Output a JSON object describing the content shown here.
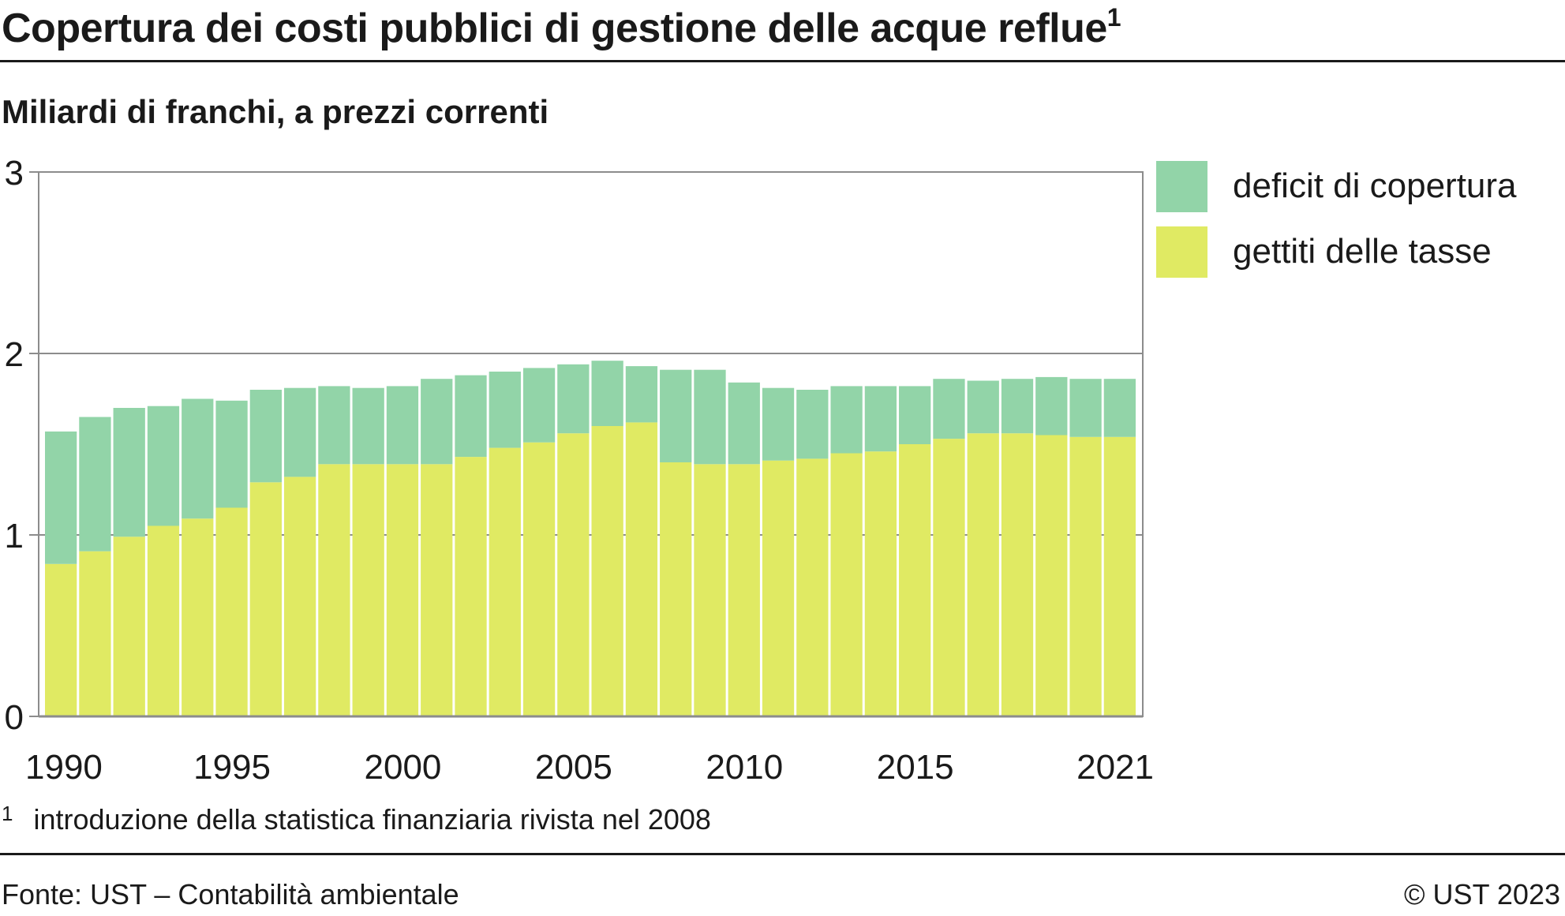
{
  "header": {
    "title": "Copertura dei costi pubblici di gestione delle acque reflue",
    "title_note_mark": "1",
    "subtitle": "Miliardi di franchi, a prezzi correnti"
  },
  "footer": {
    "footnote_mark": "1",
    "footnote_text": "introduzione della statistica finanziaria rivista nel 2008",
    "source": "Fonte: UST – Contabilità ambientale",
    "copyright": "© UST 2023"
  },
  "colors": {
    "deficit": "#92d4a8",
    "tasse": "#e0ea63",
    "gridline": "#8c8c8c",
    "text": "#1a1a1a"
  },
  "chart_data": {
    "type": "bar",
    "stacked": true,
    "title": "Copertura dei costi pubblici di gestione delle acque reflue",
    "subtitle": "Miliardi di franchi, a prezzi correnti",
    "xlabel": "",
    "ylabel": "",
    "ylim": [
      0,
      3
    ],
    "yticks": [
      "0",
      "1",
      "2",
      "3"
    ],
    "grid": true,
    "legend_position": "right",
    "categories": [
      1990,
      1991,
      1992,
      1993,
      1994,
      1995,
      1996,
      1997,
      1998,
      1999,
      2000,
      2001,
      2002,
      2003,
      2004,
      2005,
      2006,
      2007,
      2008,
      2009,
      2010,
      2011,
      2012,
      2013,
      2014,
      2015,
      2016,
      2017,
      2018,
      2019,
      2020,
      2021
    ],
    "xtick_labels": [
      "1990",
      "1995",
      "2000",
      "2005",
      "2010",
      "2015",
      "2021"
    ],
    "series": [
      {
        "name": "gettiti delle tasse",
        "color": "#e0ea63",
        "values": [
          0.84,
          0.91,
          0.99,
          1.05,
          1.09,
          1.15,
          1.29,
          1.32,
          1.39,
          1.39,
          1.39,
          1.39,
          1.43,
          1.48,
          1.51,
          1.56,
          1.6,
          1.62,
          1.4,
          1.39,
          1.39,
          1.41,
          1.42,
          1.45,
          1.46,
          1.5,
          1.53,
          1.56,
          1.56,
          1.55,
          1.54,
          1.54
        ]
      },
      {
        "name": "deficit di copertura",
        "color": "#92d4a8",
        "values": [
          0.73,
          0.74,
          0.71,
          0.66,
          0.66,
          0.59,
          0.51,
          0.49,
          0.43,
          0.42,
          0.43,
          0.47,
          0.45,
          0.42,
          0.41,
          0.38,
          0.36,
          0.31,
          0.51,
          0.52,
          0.45,
          0.4,
          0.38,
          0.37,
          0.36,
          0.32,
          0.33,
          0.29,
          0.3,
          0.32,
          0.32,
          0.32
        ]
      }
    ]
  }
}
